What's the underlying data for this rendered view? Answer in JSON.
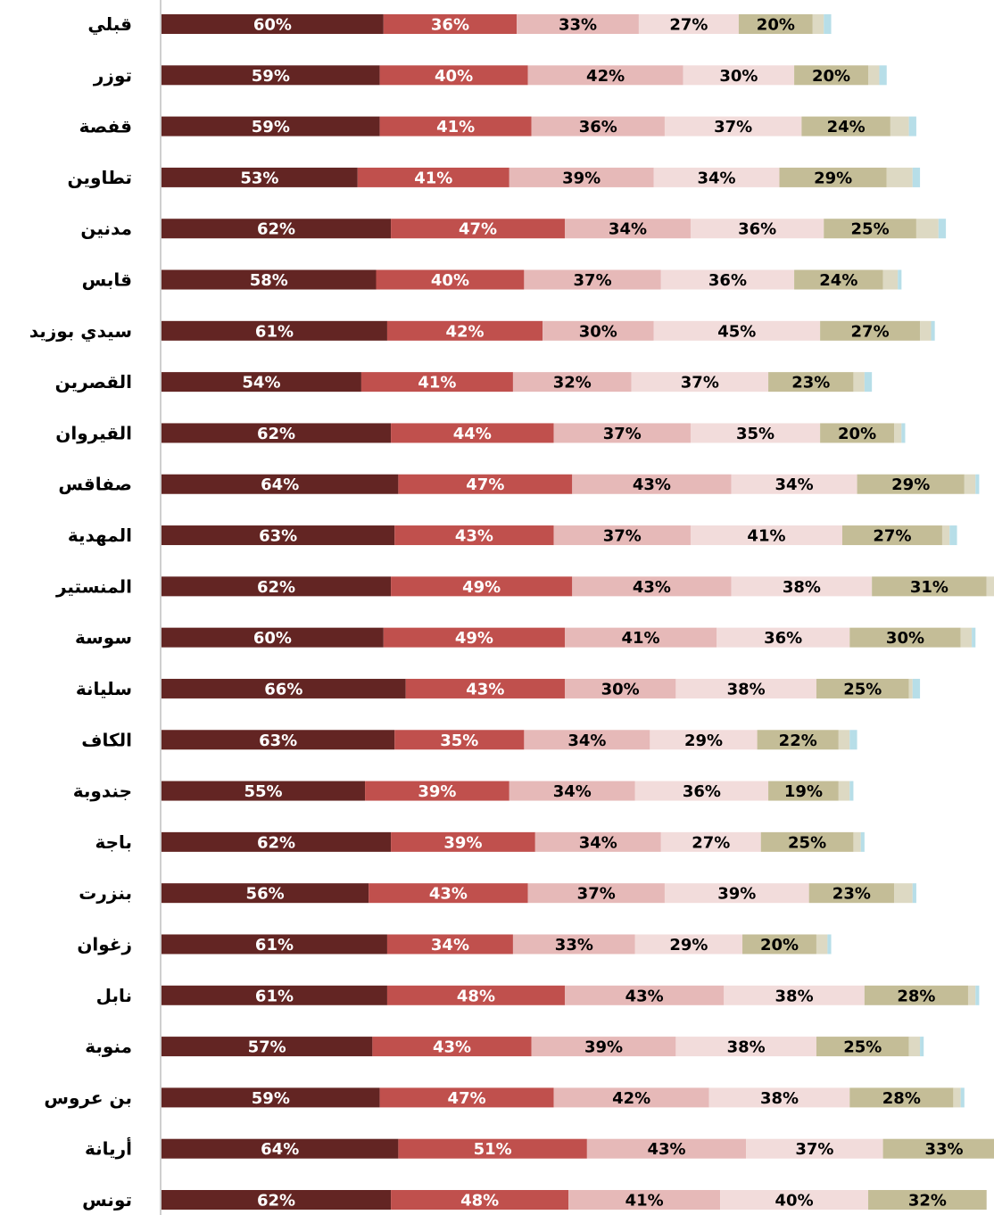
{
  "chart_data": {
    "type": "stacked_bar_horizontal",
    "categories": [
      "قبلي",
      "توزر",
      "قفصة",
      "تطاوين",
      "مدنين",
      "قابس",
      "سيدي بوزيد",
      "القصرين",
      "القيروان",
      "صفاقس",
      "المهدية",
      "المنستير",
      "سوسة",
      "سليانة",
      "الكاف",
      "جندوبة",
      "باجة",
      "بنزرت",
      "زغوان",
      "نابل",
      "منوبة",
      "بن عروس",
      "أريانة",
      "تونس"
    ],
    "xlim": [
      0,
      225
    ],
    "series": [
      {
        "color": "#632523",
        "label_color": "#ffffff",
        "values": [
          60,
          59,
          59,
          53,
          62,
          58,
          61,
          54,
          62,
          64,
          63,
          62,
          60,
          66,
          63,
          55,
          62,
          56,
          61,
          61,
          57,
          59,
          64,
          62
        ],
        "value_labels": [
          "60%",
          "59%",
          "59%",
          "53%",
          "62%",
          "58%",
          "61%",
          "54%",
          "62%",
          "64%",
          "63%",
          "62%",
          "60%",
          "66%",
          "63%",
          "55%",
          "62%",
          "56%",
          "61%",
          "61%",
          "57%",
          "59%",
          "64%",
          "62%"
        ]
      },
      {
        "color": "#c0504d",
        "label_color": "#ffffff",
        "values": [
          36,
          40,
          41,
          41,
          47,
          40,
          42,
          41,
          44,
          47,
          43,
          49,
          49,
          43,
          35,
          39,
          39,
          43,
          34,
          48,
          43,
          47,
          51,
          48
        ],
        "value_labels": [
          "36%",
          "40%",
          "41%",
          "41%",
          "47%",
          "40%",
          "42%",
          "41%",
          "44%",
          "47%",
          "43%",
          "49%",
          "49%",
          "43%",
          "35%",
          "39%",
          "39%",
          "43%",
          "34%",
          "48%",
          "43%",
          "47%",
          "51%",
          "48%"
        ]
      },
      {
        "color": "#e6b9b8",
        "label_color": "#000000",
        "values": [
          33,
          42,
          36,
          39,
          34,
          37,
          30,
          32,
          37,
          43,
          37,
          43,
          41,
          30,
          34,
          34,
          34,
          37,
          33,
          43,
          39,
          42,
          43,
          41
        ],
        "value_labels": [
          "33%",
          "42%",
          "36%",
          "39%",
          "34%",
          "37%",
          "30%",
          "32%",
          "37%",
          "43%",
          "37%",
          "43%",
          "41%",
          "30%",
          "34%",
          "34%",
          "34%",
          "37%",
          "33%",
          "43%",
          "39%",
          "42%",
          "43%",
          "41%"
        ]
      },
      {
        "color": "#f2dcdb",
        "label_color": "#000000",
        "values": [
          27,
          30,
          37,
          34,
          36,
          36,
          45,
          37,
          35,
          34,
          41,
          38,
          36,
          38,
          29,
          36,
          27,
          39,
          29,
          38,
          38,
          38,
          37,
          40
        ],
        "value_labels": [
          "27%",
          "30%",
          "37%",
          "34%",
          "36%",
          "36%",
          "45%",
          "37%",
          "35%",
          "34%",
          "41%",
          "38%",
          "36%",
          "38%",
          "29%",
          "36%",
          "27%",
          "39%",
          "29%",
          "38%",
          "38%",
          "38%",
          "37%",
          "40%"
        ]
      },
      {
        "color": "#c4bd97",
        "label_color": "#000000",
        "values": [
          20,
          20,
          24,
          29,
          25,
          24,
          27,
          23,
          20,
          29,
          27,
          31,
          30,
          25,
          22,
          19,
          25,
          23,
          20,
          28,
          25,
          28,
          33,
          32
        ],
        "value_labels": [
          "20%",
          "20%",
          "24%",
          "29%",
          "25%",
          "24%",
          "27%",
          "23%",
          "20%",
          "29%",
          "27%",
          "31%",
          "30%",
          "25%",
          "22%",
          "19%",
          "25%",
          "23%",
          "20%",
          "28%",
          "25%",
          "28%",
          "33%",
          "32%"
        ]
      },
      {
        "color": "#ddd9c3",
        "values": [
          3,
          3,
          5,
          7,
          6,
          4,
          3,
          3,
          2,
          3,
          2,
          2,
          3,
          1,
          3,
          3,
          2,
          5,
          3,
          2,
          3,
          2,
          null,
          null
        ]
      },
      {
        "color": "#b7dee8",
        "values": [
          2,
          2,
          2,
          2,
          2,
          1,
          1,
          2,
          1,
          1,
          2,
          1,
          1,
          2,
          2,
          1,
          1,
          1,
          1,
          1,
          1,
          1,
          null,
          null
        ]
      }
    ]
  }
}
